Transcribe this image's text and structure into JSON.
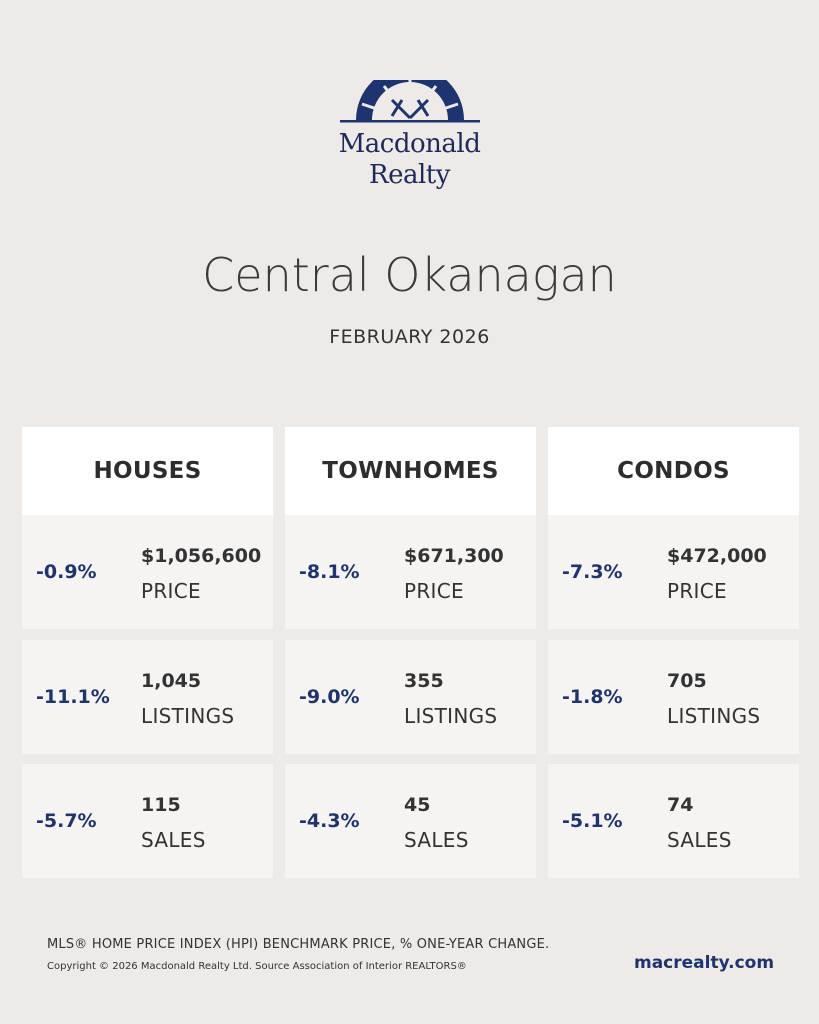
{
  "brand": {
    "logo_line1": "Macdonald",
    "logo_line2": "Realty",
    "logo_color": "#1d3470"
  },
  "header": {
    "title": "Central Okanagan",
    "period": "FEBRUARY 2026"
  },
  "columns": [
    {
      "heading": "HOUSES",
      "price": {
        "change": "-0.9%",
        "value": "$1,056,600",
        "label": "PRICE"
      },
      "listings": {
        "change": "-11.1%",
        "value": "1,045",
        "label": "LISTINGS"
      },
      "sales": {
        "change": "-5.7%",
        "value": "115",
        "label": "SALES"
      }
    },
    {
      "heading": "TOWNHOMES",
      "price": {
        "change": "-8.1%",
        "value": "$671,300",
        "label": "PRICE"
      },
      "listings": {
        "change": "-9.0%",
        "value": "355",
        "label": "LISTINGS"
      },
      "sales": {
        "change": "-4.3%",
        "value": "45",
        "label": "SALES"
      }
    },
    {
      "heading": "CONDOS",
      "price": {
        "change": "-7.3%",
        "value": "$472,000",
        "label": "PRICE"
      },
      "listings": {
        "change": "-1.8%",
        "value": "705",
        "label": "LISTINGS"
      },
      "sales": {
        "change": "-5.1%",
        "value": "74",
        "label": "SALES"
      }
    }
  ],
  "footer": {
    "note": "MLS® HOME PRICE INDEX (HPI) BENCHMARK PRICE, % ONE-YEAR CHANGE.",
    "copyright": "Copyright © 2026 Macdonald Realty Ltd. Source Association of Interior REALTORS®",
    "website": "macrealty.com"
  },
  "colors": {
    "background": "#eeeae7",
    "accent": "#1d3470",
    "card": "#f6f4f2",
    "header_card": "#ffffff"
  }
}
